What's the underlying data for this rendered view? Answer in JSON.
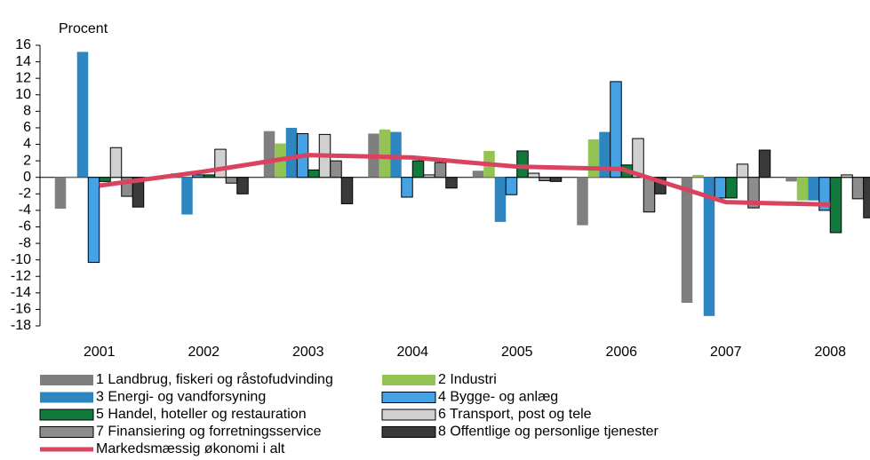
{
  "chart_data": {
    "type": "bar",
    "y_label": "Procent",
    "categories": [
      "2001",
      "2002",
      "2003",
      "2004",
      "2005",
      "2006",
      "2007",
      "2008"
    ],
    "ylim": [
      -18,
      16
    ],
    "yticks": [
      16,
      14,
      12,
      10,
      8,
      6,
      4,
      2,
      0,
      -2,
      -4,
      -6,
      -8,
      -10,
      -12,
      -14,
      -16,
      -18
    ],
    "series": [
      {
        "name": "1 Landbrug, fiskeri og råstofudvinding",
        "color": "#7f7f7f",
        "values": [
          -3.8,
          0.1,
          5.6,
          5.3,
          0.8,
          -5.8,
          -15.2,
          -0.5
        ]
      },
      {
        "name": "2 Industri",
        "color": "#92c353",
        "values": [
          0.1,
          0.5,
          4.1,
          5.8,
          3.2,
          4.6,
          0.3,
          -2.8
        ]
      },
      {
        "name": "3 Energi- og vandforsyning",
        "color": "#2e86c1",
        "values": [
          15.2,
          -4.5,
          6.0,
          5.5,
          -5.4,
          5.5,
          -16.8,
          -2.8
        ]
      },
      {
        "name": "4 Bygge- og anlæg",
        "color": "#45a3e5",
        "values": [
          -10.3,
          0.3,
          5.3,
          -2.4,
          -2.1,
          11.6,
          -2.5,
          -4.0
        ]
      },
      {
        "name": "5 Handel, hoteller og restauration",
        "color": "#107a3c",
        "values": [
          -0.5,
          0.3,
          0.9,
          2.0,
          3.2,
          1.5,
          -2.5,
          -6.7
        ]
      },
      {
        "name": "6 Transport, post og tele",
        "color": "#d0d0d0",
        "values": [
          3.6,
          3.4,
          5.2,
          0.3,
          0.5,
          4.7,
          1.6,
          0.3
        ]
      },
      {
        "name": "7 Finansiering og forretningsservice",
        "color": "#8c8c8c",
        "values": [
          -2.3,
          -0.7,
          2.0,
          1.8,
          -0.4,
          -4.2,
          -3.7,
          -2.6
        ]
      },
      {
        "name": "8 Offentlige og personlige tjenester",
        "color": "#3a3a3a",
        "values": [
          -3.6,
          -2.0,
          -3.2,
          -1.3,
          -0.5,
          -2.0,
          3.3,
          -4.9
        ]
      },
      {
        "name": "Markedsmæssig økonomi i alt",
        "type": "line",
        "color": "#d9435f",
        "values": [
          -1.0,
          0.7,
          2.7,
          2.4,
          1.3,
          1.0,
          -3.0,
          -3.3
        ]
      }
    ]
  }
}
